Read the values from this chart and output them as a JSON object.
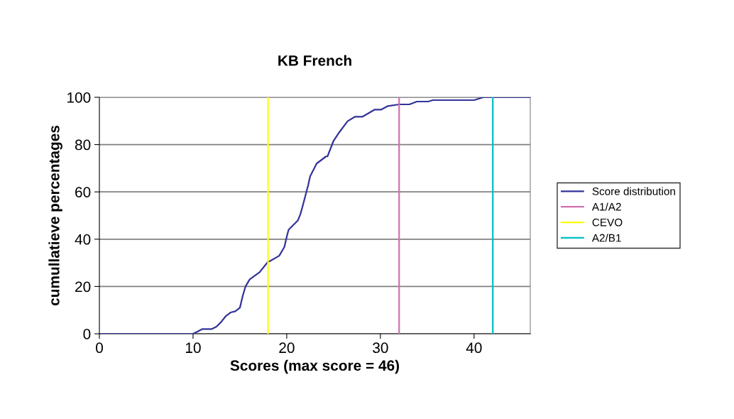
{
  "chart_data": {
    "type": "line",
    "title": "KB French",
    "xlabel": "Scores (max score = 46)",
    "ylabel": "cumullatieve percentages",
    "series": [
      {
        "name": "Score distribution",
        "color": "#333399",
        "x": [
          0,
          5,
          10,
          10.5,
          11,
          12,
          12.5,
          13,
          13.5,
          14,
          14.5,
          15,
          15.3,
          15.6,
          16.05,
          17.1,
          18.0,
          18.2,
          19.2,
          19.75,
          20.0,
          20.2,
          21.2,
          21.45,
          21.7,
          22.3,
          22.5,
          23.2,
          24.2,
          24.35,
          25.0,
          25.5,
          26.5,
          27.3,
          28.1,
          29.4,
          30.1,
          30.8,
          32.0,
          33.1,
          33.9,
          35.1,
          35.6,
          40.0,
          41.0,
          46.0
        ],
        "values": [
          0,
          0,
          0,
          1,
          2,
          2,
          3,
          5,
          7.5,
          9,
          9.5,
          11,
          16,
          20,
          23,
          26,
          30.5,
          30.7,
          33,
          36.7,
          41,
          44,
          48,
          50.5,
          54,
          63,
          66.6,
          72,
          75,
          75,
          81.6,
          84.6,
          89.9,
          91.8,
          91.8,
          94.8,
          94.8,
          96.3,
          97,
          97,
          98.2,
          98.2,
          98.8,
          98.8,
          100,
          100
        ]
      },
      {
        "name": "A1/A2",
        "color": "#d070b0",
        "x": [
          32,
          32
        ],
        "values": [
          0,
          100
        ]
      },
      {
        "name": "CEVO",
        "color": "#ffff00",
        "x": [
          18,
          18
        ],
        "values": [
          0,
          100
        ]
      },
      {
        "name": "A2/B1",
        "color": "#00c0c0",
        "x": [
          42,
          42
        ],
        "values": [
          0,
          100
        ]
      }
    ],
    "xlim": [
      0,
      46
    ],
    "xticks": [
      0,
      10,
      20,
      30,
      40
    ],
    "ylim": [
      0,
      100
    ],
    "yticks": [
      0,
      20,
      40,
      60,
      80,
      100
    ],
    "grid": "y",
    "legend": "right",
    "marker": "none",
    "line_style": "solid"
  }
}
